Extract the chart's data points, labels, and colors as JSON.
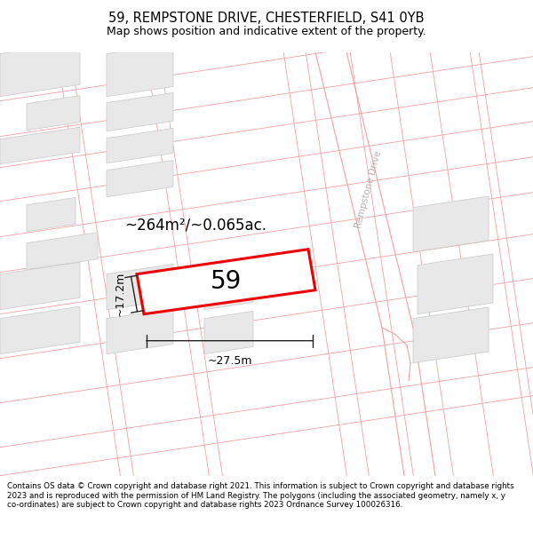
{
  "title": "59, REMPSTONE DRIVE, CHESTERFIELD, S41 0YB",
  "subtitle": "Map shows position and indicative extent of the property.",
  "area_text": "~264m²/~0.065ac.",
  "number_label": "59",
  "width_label": "~27.5m",
  "height_label": "~17.2m",
  "footer_text": "Contains OS data © Crown copyright and database right 2021. This information is subject to Crown copyright and database rights 2023 and is reproduced with the permission of HM Land Registry. The polygons (including the associated geometry, namely x, y co-ordinates) are subject to Crown copyright and database rights 2023 Ordnance Survey 100026316.",
  "bg_color": "#ffffff",
  "map_bg": "#ffffff",
  "building_fill": "#e8e8e8",
  "building_edge": "#c8c8c8",
  "plot_line": "#f5a0a0",
  "highlight_color": "#ee0000",
  "road_label_color": "#b8b0b0",
  "title_color": "#000000",
  "footer_color": "#000000",
  "dim_color": "#222222",
  "title_fontsize": 10.5,
  "subtitle_fontsize": 9,
  "area_fontsize": 12,
  "number_fontsize": 20,
  "dim_fontsize": 9,
  "footer_fontsize": 6.3
}
